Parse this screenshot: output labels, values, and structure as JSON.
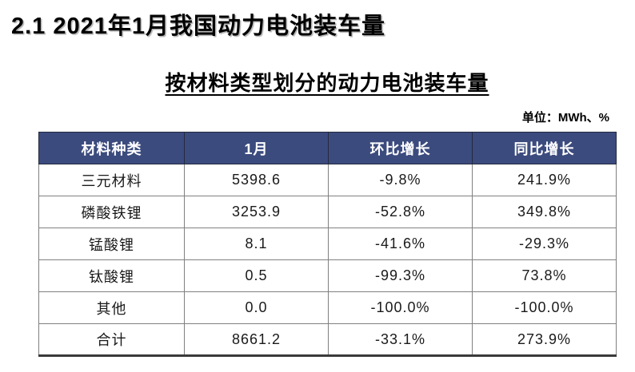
{
  "page": {
    "title": "2.1 2021年1月我国动力电池装车量",
    "subtitle": "按材料类型划分的动力电池装车量",
    "unit_label": "单位：MWh、%"
  },
  "table": {
    "headers": [
      "材料种类",
      "1月",
      "环比增长",
      "同比增长"
    ],
    "rows": [
      {
        "material": "三元材料",
        "january": "5398.6",
        "mom_growth": "-9.8%",
        "yoy_growth": "241.9%"
      },
      {
        "material": "磷酸铁锂",
        "january": "3253.9",
        "mom_growth": "-52.8%",
        "yoy_growth": "349.8%"
      },
      {
        "material": "锰酸锂",
        "january": "8.1",
        "mom_growth": "-41.6%",
        "yoy_growth": "-29.3%"
      },
      {
        "material": "钛酸锂",
        "january": "0.5",
        "mom_growth": "-99.3%",
        "yoy_growth": "73.8%"
      },
      {
        "material": "其他",
        "january": "0.0",
        "mom_growth": "-100.0%",
        "yoy_growth": "-100.0%"
      },
      {
        "material": "合计",
        "january": "8661.2",
        "mom_growth": "-33.1%",
        "yoy_growth": "273.9%"
      }
    ]
  },
  "colors": {
    "header_bg": "#3C4B7E",
    "header_text": "#FFFFFF",
    "body_text": "#1A1A1A",
    "inner_border": "#808080",
    "bottom_border": "#3A3A3A"
  }
}
